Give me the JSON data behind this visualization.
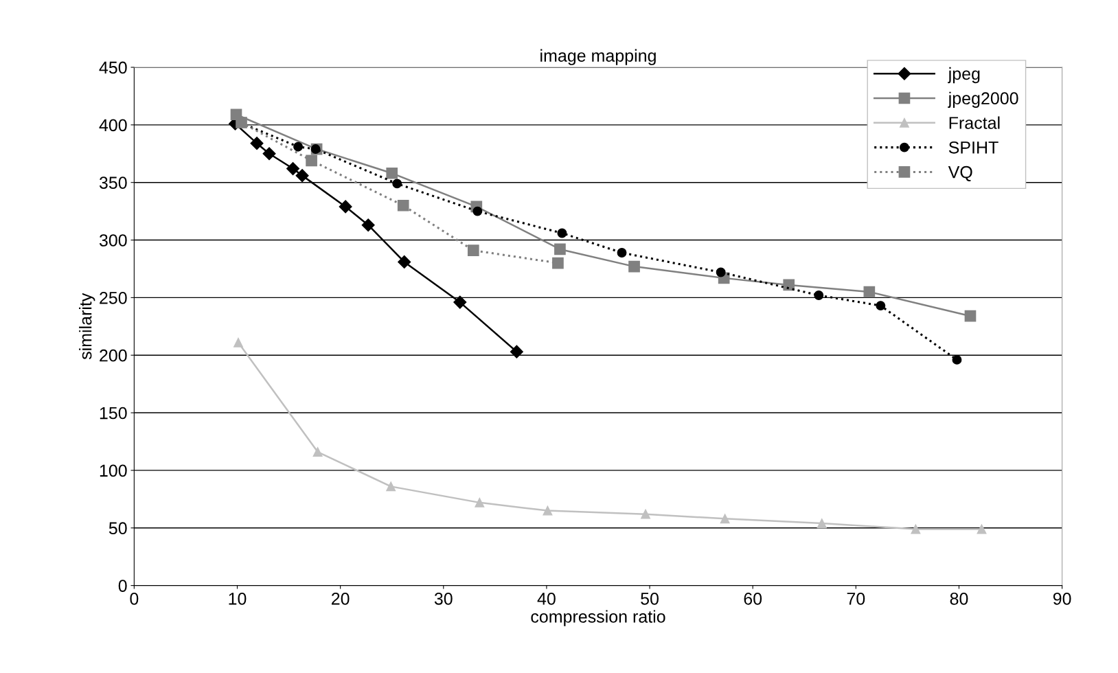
{
  "chart_data": {
    "type": "line",
    "title": "image mapping",
    "xlabel": "compression ratio",
    "ylabel": "similarity",
    "xlim": [
      0,
      90
    ],
    "xticks": [
      0,
      10,
      20,
      30,
      40,
      50,
      60,
      70,
      80,
      90
    ],
    "ylim": [
      0,
      450
    ],
    "yticks": [
      0,
      50,
      100,
      150,
      200,
      250,
      300,
      350,
      400,
      450
    ],
    "grid": "y",
    "legend": "top right",
    "series": [
      {
        "name": "jpeg",
        "color": "#000000",
        "marker": "diamond",
        "line_style": "solid",
        "x": [
          9.8,
          11.9,
          13.1,
          15.4,
          16.3,
          20.5,
          22.7,
          26.2,
          31.6,
          37.1
        ],
        "values": [
          401,
          384,
          375,
          362,
          356,
          329,
          313,
          281,
          246,
          203
        ]
      },
      {
        "name": "jpeg2000",
        "color": "#808080",
        "marker": "square",
        "line_style": "solid",
        "x": [
          9.9,
          17.7,
          25.0,
          33.2,
          41.3,
          48.5,
          57.2,
          63.5,
          71.3,
          81.1
        ],
        "values": [
          409,
          379,
          358,
          329,
          292,
          277,
          267,
          261,
          255,
          234
        ]
      },
      {
        "name": "Fractal",
        "color": "#c0c0c0",
        "marker": "triangle",
        "line_style": "solid",
        "x": [
          10.1,
          17.8,
          24.9,
          33.5,
          40.1,
          49.6,
          57.3,
          66.7,
          75.8,
          82.2
        ],
        "values": [
          211,
          116,
          86,
          72,
          65,
          62,
          58,
          54,
          49,
          49
        ]
      },
      {
        "name": "SPIHT",
        "color": "#000000",
        "marker": "circle",
        "line_style": "dotted",
        "x": [
          10.3,
          15.9,
          17.6,
          25.5,
          33.3,
          41.5,
          47.3,
          56.9,
          66.4,
          72.4,
          79.8
        ],
        "values": [
          402,
          381,
          379,
          349,
          325,
          306,
          289,
          272,
          252,
          243,
          196
        ]
      },
      {
        "name": "VQ",
        "color": "#808080",
        "marker": "square",
        "line_style": "dotted",
        "x": [
          10.4,
          17.2,
          26.1,
          32.9,
          41.1
        ],
        "values": [
          402,
          369,
          330,
          291,
          280
        ]
      }
    ]
  }
}
